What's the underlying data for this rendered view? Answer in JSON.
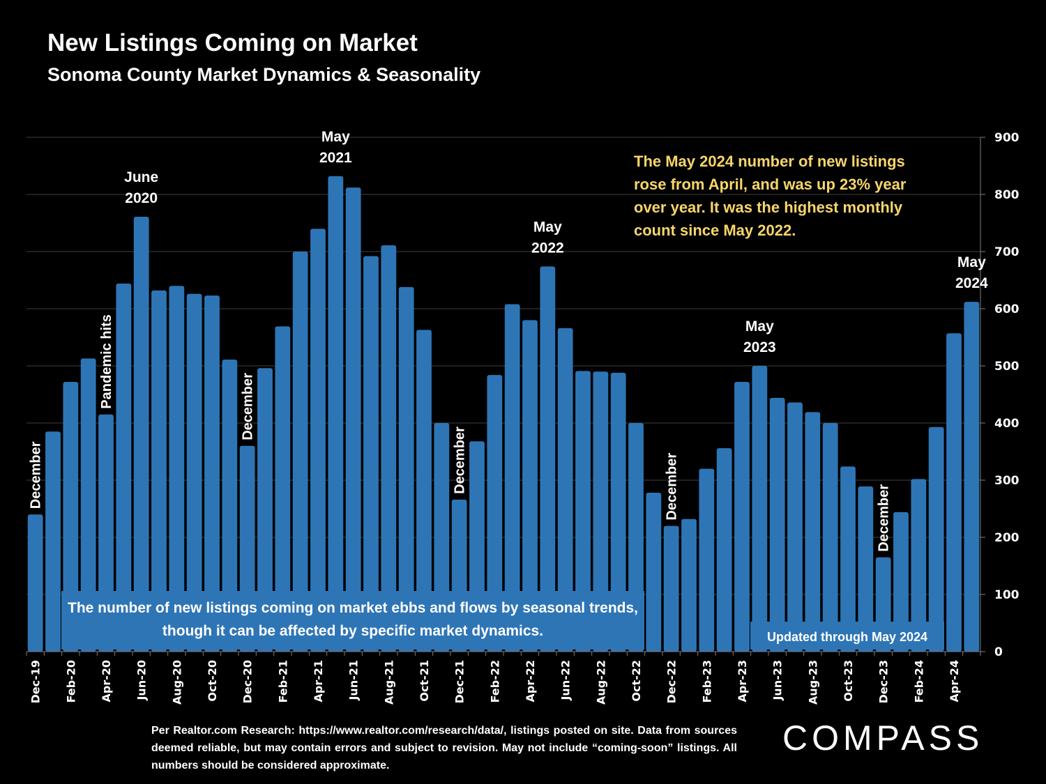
{
  "header": {
    "title": "New Listings Coming on Market",
    "subtitle": "Sonoma County Market Dynamics & Seasonality"
  },
  "callout": "The May 2024 number of new listings rose from April, and was up 23% year over year. It was the highest monthly count since May 2022.",
  "note_box": "The number of new listings coming on market ebbs and flows by seasonal trends, though it can be affected by specific market dynamics.",
  "updated_label": "Updated through May 2024",
  "footer": "Per Realtor.com Research:  https://www.realtor.com/research/data/, listings posted on site. Data from sources deemed reliable, but may contain errors and subject to revision. May not include “coming-soon” listings. All numbers should be considered approximate.",
  "logo": "COMPASS",
  "colors": {
    "bar": "#2e75b6",
    "callout": "#f7d66a",
    "background": "#000000",
    "grid": "#404040"
  },
  "chart_data": {
    "type": "bar",
    "title": "New Listings Coming on Market",
    "subtitle": "Sonoma County Market Dynamics & Seasonality",
    "xlabel": "",
    "ylabel": "",
    "ylim": [
      0,
      900
    ],
    "yticks": [
      0,
      100,
      200,
      300,
      400,
      500,
      600,
      700,
      800,
      900
    ],
    "y_axis_side": "right",
    "grid": true,
    "categories": [
      "Dec-19",
      "Jan-20",
      "Feb-20",
      "Mar-20",
      "Apr-20",
      "May-20",
      "Jun-20",
      "Jul-20",
      "Aug-20",
      "Sep-20",
      "Oct-20",
      "Nov-20",
      "Dec-20",
      "Jan-21",
      "Feb-21",
      "Mar-21",
      "Apr-21",
      "May-21",
      "Jun-21",
      "Jul-21",
      "Aug-21",
      "Sep-21",
      "Oct-21",
      "Nov-21",
      "Dec-21",
      "Jan-22",
      "Feb-22",
      "Mar-22",
      "Apr-22",
      "May-22",
      "Jun-22",
      "Jul-22",
      "Aug-22",
      "Sep-22",
      "Oct-22",
      "Nov-22",
      "Dec-22",
      "Jan-23",
      "Feb-23",
      "Mar-23",
      "Apr-23",
      "May-23",
      "Jun-23",
      "Jul-23",
      "Aug-23",
      "Sep-23",
      "Oct-23",
      "Nov-23",
      "Dec-23",
      "Jan-24",
      "Feb-24",
      "Mar-24",
      "Apr-24",
      "May-24"
    ],
    "tick_labels": [
      "Dec-19",
      "Feb-20",
      "Apr-20",
      "Jun-20",
      "Aug-20",
      "Oct-20",
      "Dec-20",
      "Feb-21",
      "Apr-21",
      "Jun-21",
      "Aug-21",
      "Oct-21",
      "Dec-21",
      "Feb-22",
      "Apr-22",
      "Jun-22",
      "Aug-22",
      "Oct-22",
      "Dec-22",
      "Feb-23",
      "Apr-23",
      "Jun-23",
      "Aug-23",
      "Oct-23",
      "Dec-23",
      "Feb-24",
      "Apr-24"
    ],
    "values": [
      240,
      385,
      472,
      513,
      415,
      644,
      761,
      632,
      640,
      626,
      623,
      511,
      360,
      496,
      569,
      700,
      740,
      832,
      812,
      692,
      711,
      638,
      563,
      400,
      266,
      368,
      484,
      608,
      580,
      674,
      566,
      491,
      490,
      488,
      400,
      278,
      220,
      232,
      320,
      356,
      472,
      500,
      444,
      436,
      419,
      400,
      324,
      289,
      165,
      244,
      302,
      393,
      557,
      612
    ],
    "annotations": [
      {
        "index": 0,
        "text": "December",
        "rotated": true
      },
      {
        "index": 4,
        "text": "Pandemic hits",
        "rotated": true
      },
      {
        "index": 6,
        "text": "June\n2020",
        "rotated": false
      },
      {
        "index": 12,
        "text": "December",
        "rotated": true
      },
      {
        "index": 17,
        "text": "May\n2021",
        "rotated": false
      },
      {
        "index": 24,
        "text": "December",
        "rotated": true
      },
      {
        "index": 29,
        "text": "May\n2022",
        "rotated": false
      },
      {
        "index": 36,
        "text": "December",
        "rotated": true
      },
      {
        "index": 41,
        "text": "May\n2023",
        "rotated": false
      },
      {
        "index": 48,
        "text": "December",
        "rotated": true
      },
      {
        "index": 53,
        "text": "May\n2024",
        "rotated": false
      }
    ]
  }
}
